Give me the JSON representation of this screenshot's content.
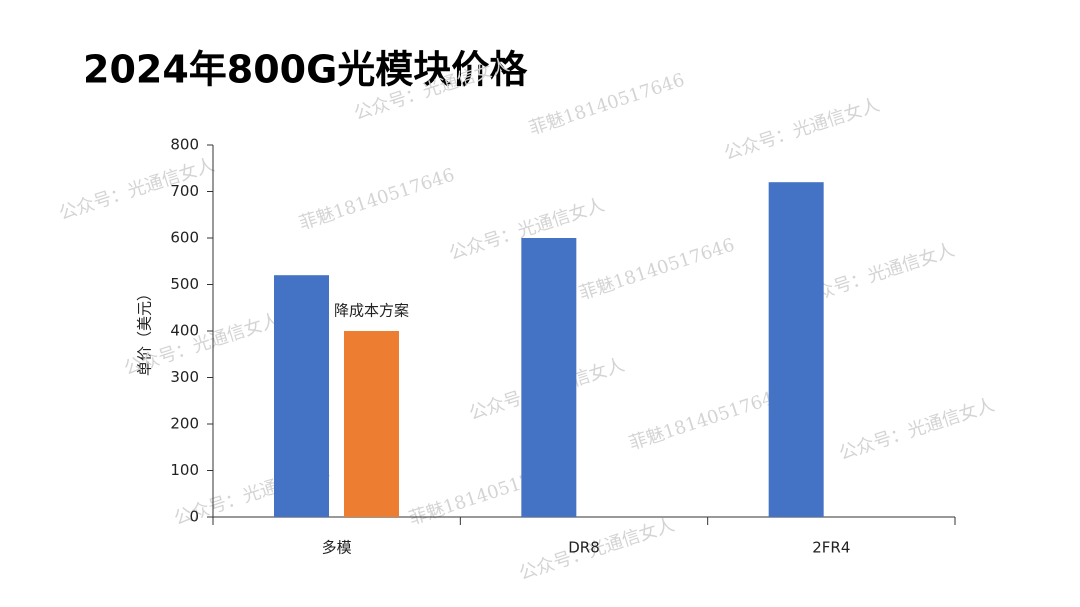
{
  "chart_data": {
    "type": "bar",
    "title": "2024年800G光模块价格",
    "y_label": "单价（美元）",
    "annotation": "降成本方案",
    "categories": [
      "多模",
      "DR8",
      "2FR4"
    ],
    "series": [
      {
        "color": "#4472c4",
        "values": [
          520,
          600,
          720
        ]
      },
      {
        "color": "#ed7d31",
        "values": [
          400,
          null,
          null
        ]
      }
    ],
    "ylim": [
      0,
      800
    ],
    "yticks": [
      0,
      100,
      200,
      300,
      400,
      500,
      600,
      700,
      800
    ],
    "grid": false,
    "watermarks": [
      "公众号：光通信女人",
      "菲魅18140517646"
    ]
  }
}
